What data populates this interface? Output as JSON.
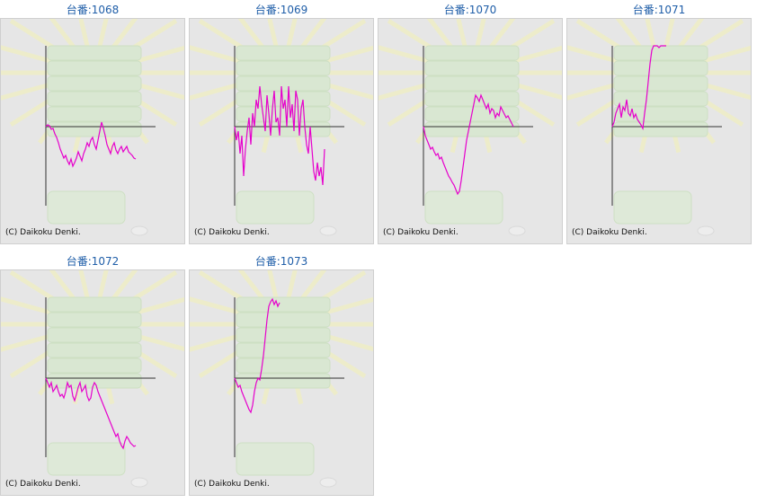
{
  "credit": "(C) Daikoku Denki.",
  "line_color": "#e600cc",
  "axis_color": "#333333",
  "chart_data": [
    {
      "type": "line",
      "title": "台番:1068",
      "x": [
        0,
        2,
        4,
        6,
        8,
        10,
        12,
        14,
        16,
        18,
        20,
        22,
        24,
        26,
        28,
        30,
        32,
        34,
        36,
        38,
        40,
        42,
        44,
        46,
        48,
        50,
        52,
        54,
        56,
        58,
        60,
        62,
        64,
        66,
        68,
        70,
        72,
        74,
        76,
        78,
        80,
        82,
        84,
        86,
        88,
        90,
        92,
        94,
        96,
        98,
        100
      ],
      "values": [
        0,
        2,
        1,
        -3,
        -2,
        -8,
        -12,
        -18,
        -25,
        -30,
        -35,
        -32,
        -38,
        -42,
        -36,
        -44,
        -40,
        -35,
        -28,
        -33,
        -38,
        -30,
        -25,
        -18,
        -22,
        -15,
        -12,
        -20,
        -25,
        -15,
        -5,
        5,
        -2,
        -10,
        -20,
        -25,
        -30,
        -22,
        -18,
        -26,
        -30,
        -25,
        -22,
        -28,
        -25,
        -22,
        -28,
        -30,
        -32,
        -35,
        -36
      ]
    },
    {
      "type": "line",
      "title": "台番:1069",
      "x": [
        0,
        2,
        4,
        6,
        8,
        10,
        12,
        14,
        16,
        18,
        20,
        22,
        24,
        26,
        28,
        30,
        32,
        34,
        36,
        38,
        40,
        42,
        44,
        46,
        48,
        50,
        52,
        54,
        56,
        58,
        60,
        62,
        64,
        66,
        68,
        70,
        72,
        74,
        76,
        78,
        80,
        82,
        84,
        86,
        88,
        90,
        92,
        94,
        96,
        98,
        100
      ],
      "values": [
        0,
        -15,
        -5,
        -30,
        -10,
        -55,
        -25,
        -5,
        10,
        -20,
        15,
        0,
        30,
        20,
        45,
        25,
        10,
        -5,
        35,
        15,
        -10,
        20,
        40,
        5,
        10,
        -10,
        45,
        20,
        30,
        0,
        45,
        10,
        25,
        -5,
        40,
        30,
        -10,
        20,
        30,
        0,
        -20,
        -30,
        0,
        -25,
        -50,
        -60,
        -40,
        -55,
        -45,
        -65,
        -25
      ]
    },
    {
      "type": "line",
      "title": "台番:1070",
      "x": [
        0,
        2,
        4,
        6,
        8,
        10,
        12,
        14,
        16,
        18,
        20,
        22,
        24,
        26,
        28,
        30,
        32,
        34,
        36,
        38,
        40,
        42,
        44,
        46,
        48,
        50,
        52,
        54,
        56,
        58,
        60,
        62,
        64,
        66,
        68,
        70,
        72,
        74,
        76,
        78,
        80,
        82,
        84,
        86,
        88,
        90,
        92,
        94,
        96,
        98,
        100
      ],
      "values": [
        0,
        -10,
        -15,
        -20,
        -25,
        -23,
        -28,
        -32,
        -30,
        -36,
        -34,
        -40,
        -45,
        -50,
        -55,
        -58,
        -62,
        -65,
        -70,
        -75,
        -72,
        -60,
        -45,
        -30,
        -15,
        -5,
        5,
        15,
        25,
        35,
        32,
        28,
        35,
        30,
        25,
        20,
        25,
        15,
        20,
        18,
        10,
        15,
        12,
        22,
        18,
        14,
        10,
        12,
        8,
        4,
        0
      ]
    },
    {
      "type": "line",
      "title": "台番:1071",
      "x": [
        0,
        2,
        4,
        6,
        8,
        10,
        12,
        14,
        16,
        18,
        20,
        22,
        24,
        26,
        28,
        30,
        32,
        34,
        36,
        38,
        40,
        42,
        44,
        46,
        48,
        50,
        52,
        54,
        56,
        58,
        60
      ],
      "values": [
        0,
        5,
        15,
        20,
        25,
        10,
        22,
        18,
        30,
        15,
        12,
        20,
        10,
        14,
        8,
        5,
        2,
        -2,
        15,
        30,
        50,
        70,
        85,
        95,
        90,
        92,
        88,
        96,
        90,
        92,
        95
      ]
    },
    {
      "type": "line",
      "title": "台番:1072",
      "x": [
        0,
        2,
        4,
        6,
        8,
        10,
        12,
        14,
        16,
        18,
        20,
        22,
        24,
        26,
        28,
        30,
        32,
        34,
        36,
        38,
        40,
        42,
        44,
        46,
        48,
        50,
        52,
        54,
        56,
        58,
        60,
        62,
        64,
        66,
        68,
        70,
        72,
        74,
        76,
        78,
        80,
        82,
        84,
        86,
        88,
        90,
        92,
        94,
        96,
        98,
        100
      ],
      "values": [
        0,
        -5,
        -10,
        -5,
        -15,
        -12,
        -8,
        -15,
        -20,
        -18,
        -22,
        -15,
        -5,
        -10,
        -8,
        -20,
        -25,
        -18,
        -10,
        -5,
        -15,
        -12,
        -8,
        -20,
        -25,
        -22,
        -10,
        -5,
        -8,
        -15,
        -20,
        -25,
        -30,
        -35,
        -40,
        -45,
        -50,
        -55,
        -60,
        -65,
        -62,
        -70,
        -75,
        -78,
        -70,
        -65,
        -68,
        -72,
        -74,
        -76,
        -75
      ]
    },
    {
      "type": "line",
      "title": "台番:1073",
      "x": [
        0,
        2,
        4,
        6,
        8,
        10,
        12,
        14,
        16,
        18,
        20,
        22,
        24,
        26,
        28,
        30,
        32,
        34,
        36,
        38,
        40,
        42,
        44,
        46,
        48,
        50
      ],
      "values": [
        0,
        -5,
        -10,
        -8,
        -15,
        -20,
        -25,
        -30,
        -35,
        -38,
        -30,
        -15,
        -5,
        0,
        -2,
        10,
        25,
        45,
        65,
        80,
        85,
        88,
        82,
        86,
        80,
        84
      ]
    }
  ]
}
